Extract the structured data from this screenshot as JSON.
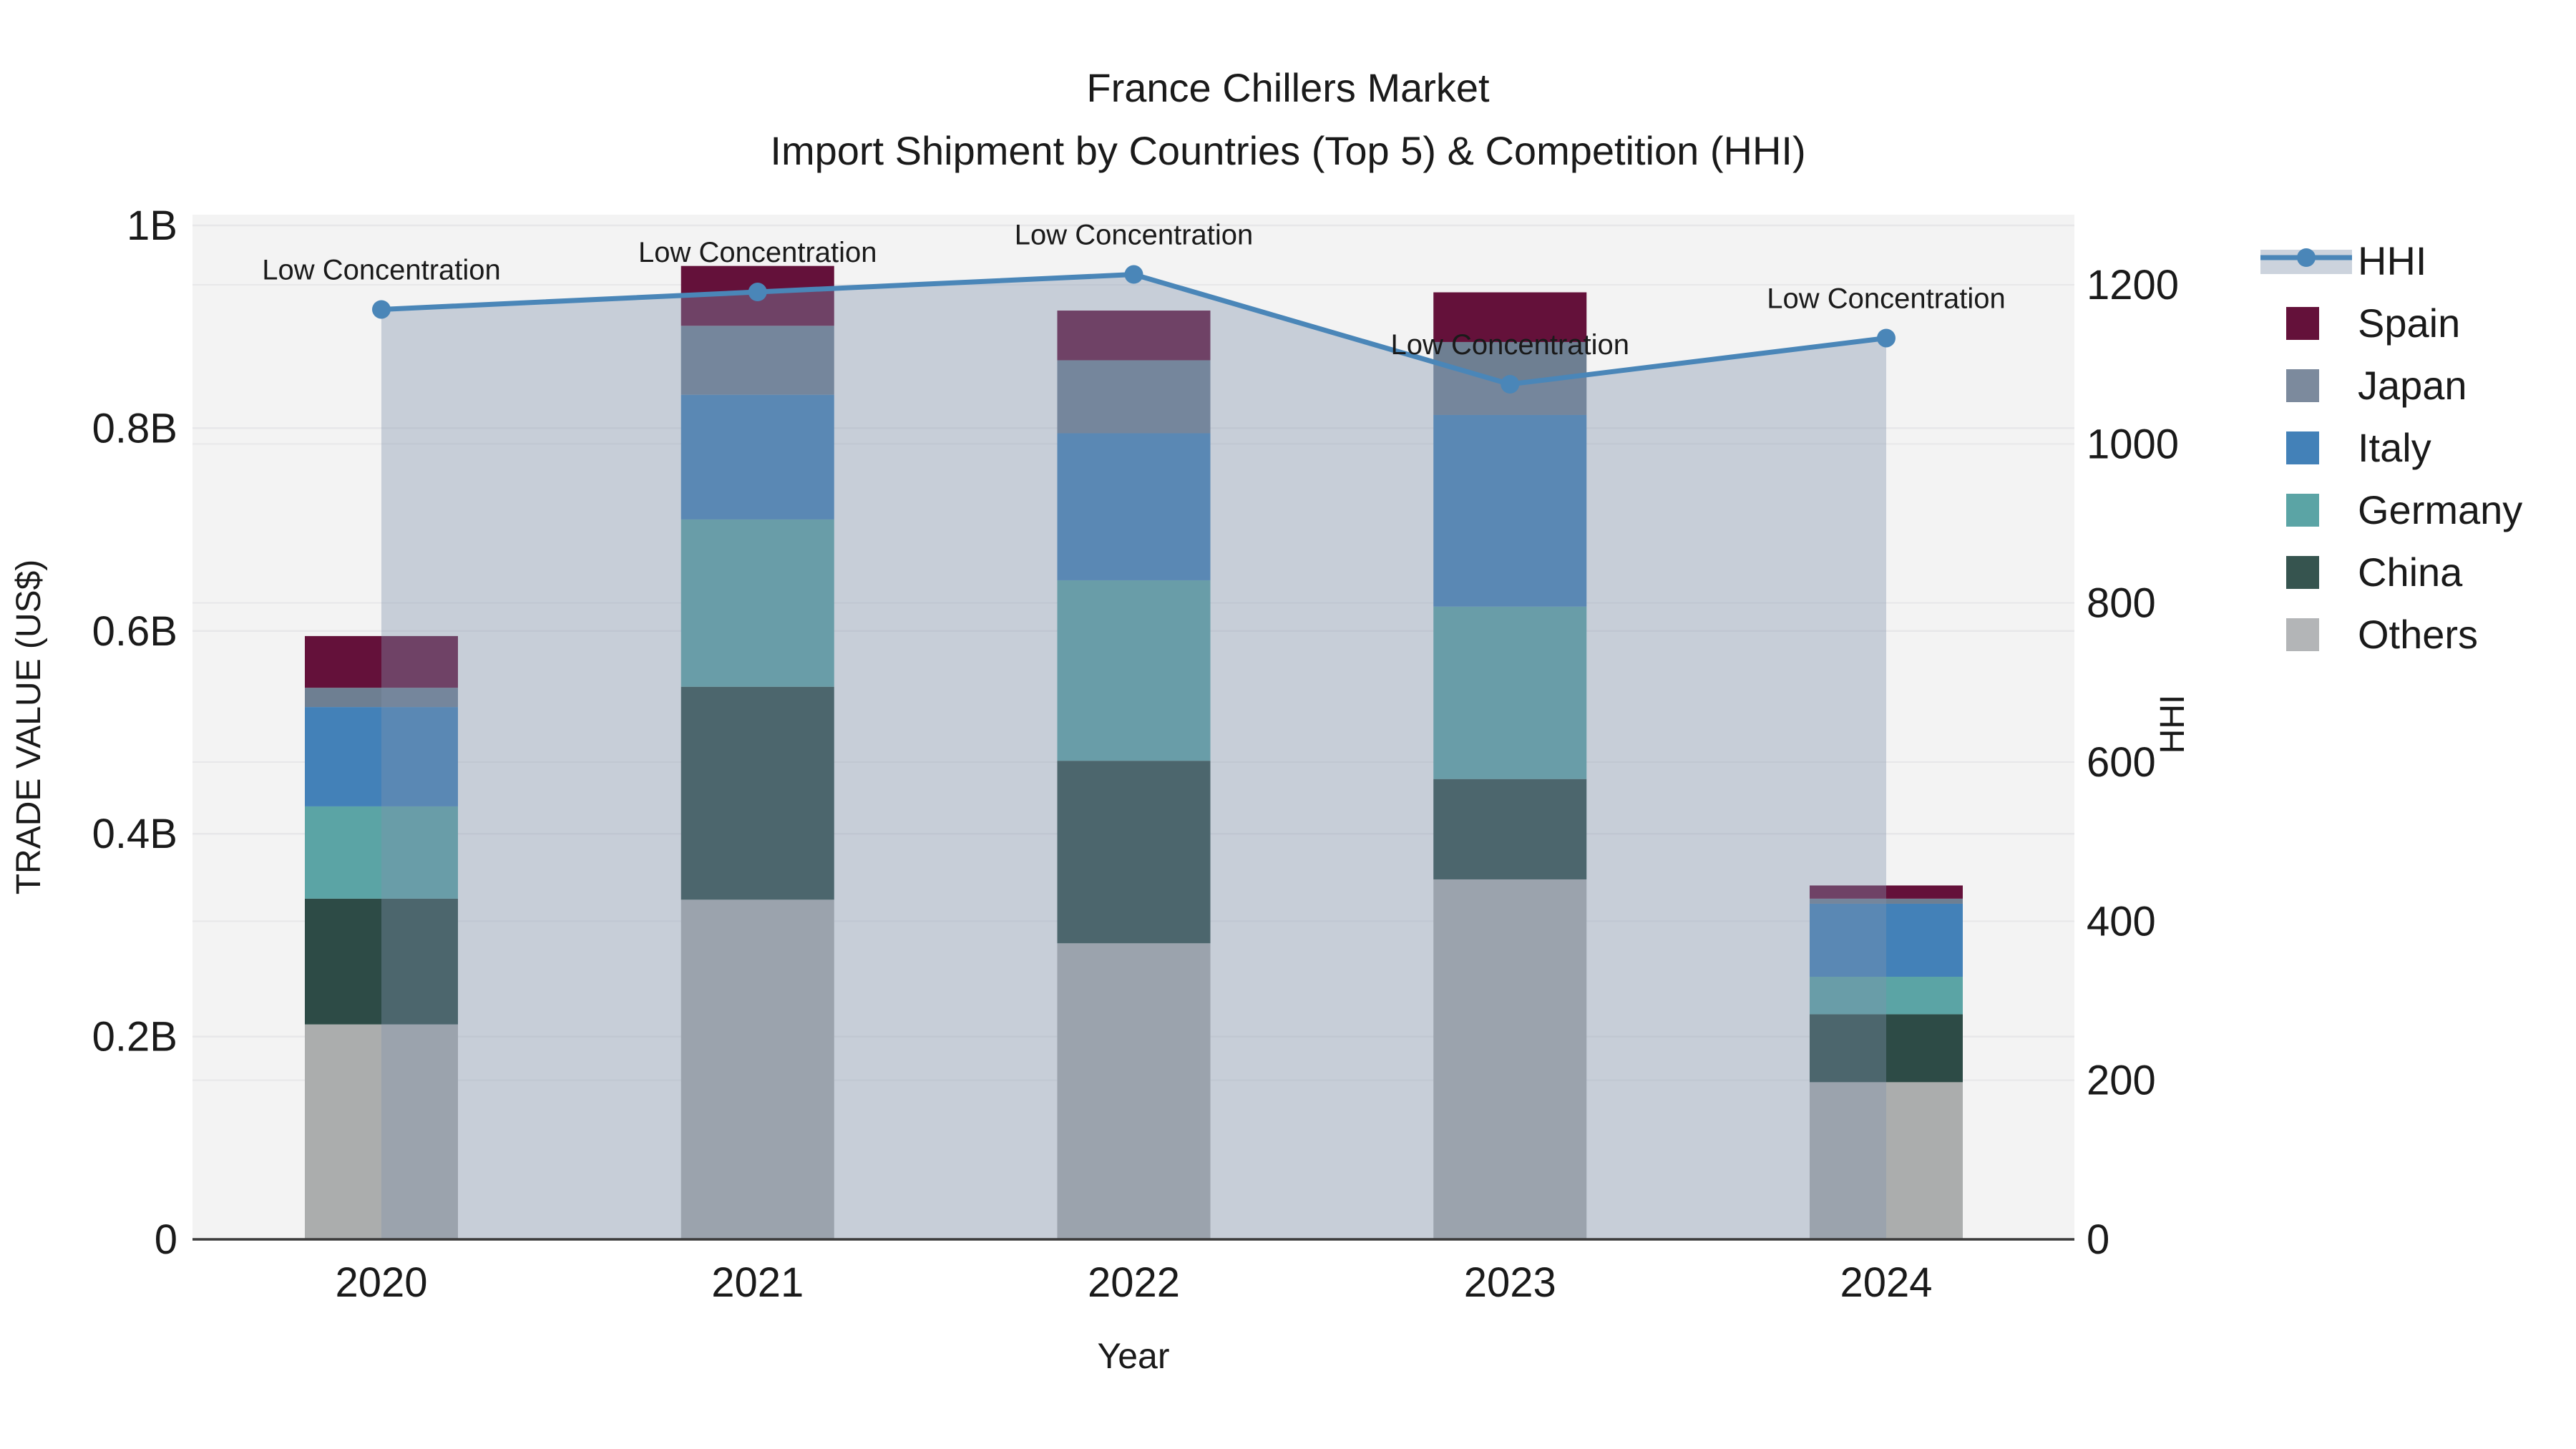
{
  "title": {
    "line1": "France Chillers Market",
    "line2": "Import Shipment by Countries (Top 5) & Competition (HHI)"
  },
  "chart_data": {
    "type": "combo-stacked-bar-line",
    "title": "France Chillers Market",
    "subtitle": "Import Shipment by Countries (Top 5) & Competition (HHI)",
    "xlabel": "Year",
    "ylabel_left": "TRADE VALUE (US$)",
    "ylabel_right": "HHI",
    "categories": [
      "2020",
      "2021",
      "2022",
      "2023",
      "2024"
    ],
    "left_axis": {
      "tick_labels": [
        "0",
        "0.2B",
        "0.4B",
        "0.6B",
        "0.8B",
        "1B"
      ],
      "tick_values": [
        0,
        0.2,
        0.4,
        0.6,
        0.8,
        1.0
      ],
      "max": 1.0,
      "unit": "billions of US$"
    },
    "right_axis": {
      "tick_labels": [
        "0",
        "200",
        "400",
        "600",
        "800",
        "1000",
        "1200"
      ],
      "tick_values": [
        0,
        200,
        400,
        600,
        800,
        1000,
        1200
      ],
      "max": 1200
    },
    "stacked_series": [
      {
        "name": "Others",
        "color": "#abadad",
        "values": [
          0.212,
          0.335,
          0.292,
          0.355,
          0.155
        ]
      },
      {
        "name": "China",
        "color": "#2d4b46",
        "values": [
          0.124,
          0.21,
          0.18,
          0.099,
          0.067
        ]
      },
      {
        "name": "Germany",
        "color": "#5ba4a5",
        "values": [
          0.091,
          0.165,
          0.178,
          0.17,
          0.037
        ]
      },
      {
        "name": "Italy",
        "color": "#4381b8",
        "values": [
          0.098,
          0.123,
          0.145,
          0.189,
          0.072
        ]
      },
      {
        "name": "Japan",
        "color": "#6e7f92",
        "values": [
          0.019,
          0.068,
          0.072,
          0.072,
          0.005
        ]
      },
      {
        "name": "Spain",
        "color": "#64113a",
        "values": [
          0.051,
          0.059,
          0.049,
          0.049,
          0.013
        ]
      }
    ],
    "hhi_line": {
      "name": "HHI",
      "values": [
        1169,
        1191,
        1213,
        1075,
        1133
      ],
      "line_color": "#4a86b8",
      "area_color": "rgba(130,146,174,0.38)",
      "annotation_text": "Low Concentration"
    },
    "annotations": [
      "Low Concentration",
      "Low Concentration",
      "Low Concentration",
      "Low Concentration",
      "Low Concentration"
    ],
    "legend": {
      "position": "right",
      "items": [
        {
          "label": "HHI",
          "type": "line",
          "color": "#4a86b8",
          "band_color": "#ccd3dd"
        },
        {
          "label": "Spain",
          "type": "swatch",
          "color": "#64113a"
        },
        {
          "label": "Japan",
          "type": "swatch",
          "color": "#7c8a9d"
        },
        {
          "label": "Italy",
          "type": "swatch",
          "color": "#4381b8"
        },
        {
          "label": "Germany",
          "type": "swatch",
          "color": "#5ba4a5"
        },
        {
          "label": "China",
          "type": "swatch",
          "color": "#36544f"
        },
        {
          "label": "Others",
          "type": "swatch",
          "color": "#b3b5b7"
        }
      ]
    },
    "style": {
      "plot_bg": "#f3f3f3",
      "grid_color": "#e7e7e9",
      "baseline_color": "#3a3a3a",
      "text_color": "#1a1a1a"
    }
  }
}
